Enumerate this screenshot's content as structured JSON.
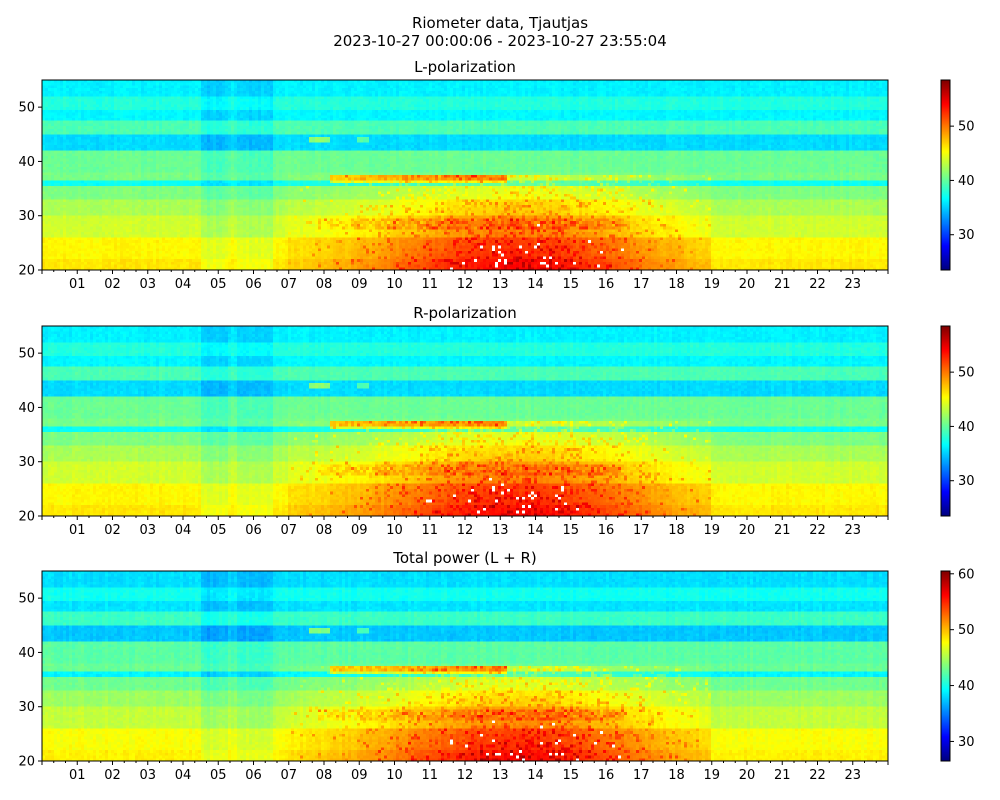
{
  "figure": {
    "title_line1": "Riometer data, Tjautjas",
    "title_line2": "2023-10-27 00:00:06 - 2023-10-27 23:55:04"
  },
  "chart_data": [
    {
      "type": "heatmap",
      "title": "L-polarization",
      "xlabel": "",
      "ylabel": "",
      "x_tick_labels": [
        "01",
        "02",
        "03",
        "04",
        "05",
        "06",
        "07",
        "08",
        "09",
        "10",
        "11",
        "12",
        "13",
        "14",
        "15",
        "16",
        "17",
        "18",
        "19",
        "20",
        "21",
        "22",
        "23"
      ],
      "xlim_hours": [
        0,
        24
      ],
      "ylim": [
        20,
        55
      ],
      "y_ticks": [
        20,
        30,
        40,
        50
      ],
      "colorbar": {
        "colormap": "jet",
        "range": [
          23.5,
          58.5
        ],
        "ticks": [
          30,
          40,
          50
        ]
      },
      "description_values": {
        "background_level_high_rows": 37,
        "background_level_low_rows": 44,
        "peak_level": 52,
        "enhancement_hours": [
          7,
          19
        ],
        "enhancement_rows": [
          20,
          37
        ]
      }
    },
    {
      "type": "heatmap",
      "title": "R-polarization",
      "xlabel": "",
      "ylabel": "",
      "x_tick_labels": [
        "01",
        "02",
        "03",
        "04",
        "05",
        "06",
        "07",
        "08",
        "09",
        "10",
        "11",
        "12",
        "13",
        "14",
        "15",
        "16",
        "17",
        "18",
        "19",
        "20",
        "21",
        "22",
        "23"
      ],
      "xlim_hours": [
        0,
        24
      ],
      "ylim": [
        20,
        55
      ],
      "y_ticks": [
        20,
        30,
        40,
        50
      ],
      "colorbar": {
        "colormap": "jet",
        "range": [
          23.5,
          58.5
        ],
        "ticks": [
          30,
          40,
          50
        ]
      },
      "description_values": {
        "background_level_high_rows": 37,
        "background_level_low_rows": 44,
        "peak_level": 52,
        "enhancement_hours": [
          7,
          19
        ],
        "enhancement_rows": [
          20,
          37
        ]
      }
    },
    {
      "type": "heatmap",
      "title": "Total power (L + R)",
      "xlabel": "",
      "ylabel": "",
      "x_tick_labels": [
        "01",
        "02",
        "03",
        "04",
        "05",
        "06",
        "07",
        "08",
        "09",
        "10",
        "11",
        "12",
        "13",
        "14",
        "15",
        "16",
        "17",
        "18",
        "19",
        "20",
        "21",
        "22",
        "23"
      ],
      "xlim_hours": [
        0,
        24
      ],
      "ylim": [
        20,
        55
      ],
      "y_ticks": [
        20,
        30,
        40,
        50
      ],
      "colorbar": {
        "colormap": "jet",
        "range": [
          26.5,
          60.5
        ],
        "ticks": [
          30,
          40,
          50,
          60
        ]
      },
      "description_values": {
        "background_level_high_rows": 40,
        "background_level_low_rows": 46,
        "peak_level": 54,
        "enhancement_hours": [
          7,
          19
        ],
        "enhancement_rows": [
          20,
          37
        ]
      }
    }
  ]
}
